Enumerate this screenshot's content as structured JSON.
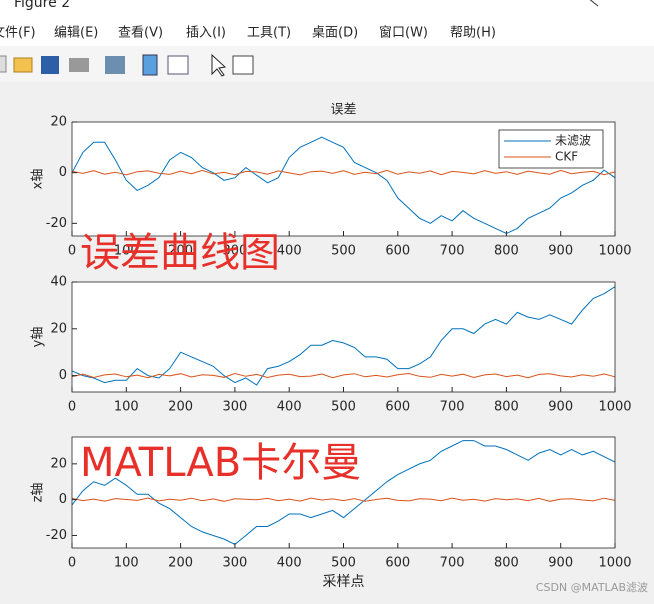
{
  "window": {
    "title": "Figure 2",
    "menu": [
      "文件(F)",
      "编辑(E)",
      "查看(V)",
      "插入(I)",
      "工具(T)",
      "桌面(D)",
      "窗口(W)",
      "帮助(H)"
    ],
    "overlays": [
      "误差曲线图",
      "MATLAB卡尔曼"
    ],
    "watermark": "CSDN @MATLAB滤波"
  },
  "chart_data": [
    {
      "type": "line",
      "title": "误差",
      "ylabel": "x轴",
      "legend": "northeast",
      "x": [
        0,
        20,
        40,
        60,
        80,
        100,
        120,
        140,
        160,
        180,
        200,
        220,
        240,
        260,
        280,
        300,
        320,
        340,
        360,
        380,
        400,
        420,
        440,
        460,
        480,
        500,
        520,
        540,
        560,
        580,
        600,
        620,
        640,
        660,
        680,
        700,
        720,
        740,
        760,
        780,
        800,
        820,
        840,
        860,
        880,
        900,
        920,
        940,
        960,
        980,
        1000
      ],
      "xlim": [
        0,
        1000
      ],
      "xticks": [
        0,
        100,
        200,
        300,
        400,
        500,
        600,
        700,
        800,
        900,
        1000
      ],
      "ylim": [
        -25,
        20
      ],
      "yticks": [
        -20,
        0,
        20
      ],
      "series": [
        {
          "name": "未滤波",
          "color": "#0072BD",
          "values": [
            0,
            8,
            12,
            12,
            5,
            -3,
            -7,
            -5,
            -2,
            5,
            8,
            6,
            2,
            0,
            -3,
            -2,
            2,
            -1,
            -4,
            -2,
            6,
            10,
            12,
            14,
            12,
            10,
            4,
            2,
            0,
            -3,
            -10,
            -14,
            -18,
            -20,
            -17,
            -19,
            -15,
            -18,
            -20,
            -22,
            -24,
            -22,
            -18,
            -16,
            -14,
            -10,
            -8,
            -5,
            -3,
            1,
            -2
          ]
        },
        {
          "name": "CKF",
          "color": "#D95319",
          "values": [
            0.5,
            -0.3,
            0.8,
            -0.6,
            0.2,
            -0.9,
            0.4,
            0.7,
            -0.2,
            -0.7,
            0.6,
            -0.4,
            0.9,
            -0.5,
            0.1,
            -0.8,
            0.5,
            0.3,
            -0.6,
            0.7,
            -0.1,
            -0.9,
            0.4,
            0.6,
            -0.3,
            0.8,
            -0.7,
            0.2,
            -0.4,
            0.9,
            -0.6,
            0.3,
            -0.2,
            0.7,
            -0.8,
            0.5,
            0.1,
            -0.5,
            0.8,
            -0.3,
            0.4,
            -0.7,
            0.6,
            -0.1,
            -0.6,
            0.9,
            -0.4,
            0.2,
            0.5,
            -0.8,
            0.3
          ]
        }
      ]
    },
    {
      "type": "line",
      "ylabel": "y轴",
      "x": [
        0,
        20,
        40,
        60,
        80,
        100,
        120,
        140,
        160,
        180,
        200,
        220,
        240,
        260,
        280,
        300,
        320,
        340,
        360,
        380,
        400,
        420,
        440,
        460,
        480,
        500,
        520,
        540,
        560,
        580,
        600,
        620,
        640,
        660,
        680,
        700,
        720,
        740,
        760,
        780,
        800,
        820,
        840,
        860,
        880,
        900,
        920,
        940,
        960,
        980,
        1000
      ],
      "xlim": [
        0,
        1000
      ],
      "xticks": [
        0,
        100,
        200,
        300,
        400,
        500,
        600,
        700,
        800,
        900,
        1000
      ],
      "ylim": [
        -7,
        40
      ],
      "yticks": [
        0,
        20,
        40
      ],
      "series": [
        {
          "color": "#0072BD",
          "values": [
            2,
            0,
            -1,
            -3,
            -2,
            -2,
            3,
            0,
            -1,
            3,
            10,
            8,
            6,
            4,
            0,
            -3,
            -1,
            -4,
            3,
            4,
            6,
            9,
            13,
            13,
            15,
            14,
            12,
            8,
            8,
            7,
            3,
            3,
            5,
            8,
            15,
            20,
            20,
            18,
            22,
            24,
            22,
            27,
            25,
            24,
            26,
            24,
            22,
            28,
            33,
            35,
            38
          ]
        },
        {
          "color": "#D95319",
          "values": [
            -0.4,
            0.6,
            -0.8,
            0.3,
            0.7,
            -0.5,
            0.2,
            -0.9,
            0.5,
            -0.1,
            0.8,
            -0.6,
            0.4,
            0.1,
            -0.7,
            0.9,
            -0.3,
            0.5,
            -0.8,
            0.2,
            0.6,
            -0.4,
            -0.2,
            0.7,
            -0.9,
            0.3,
            0.8,
            -0.5,
            0.1,
            -0.6,
            0.4,
            0.9,
            -0.3,
            -0.7,
            0.5,
            -0.2,
            0.6,
            -0.8,
            0.3,
            0.7,
            -0.4,
            0.2,
            -0.9,
            0.5,
            0.8,
            -0.1,
            -0.6,
            0.4,
            -0.3,
            0.7,
            -0.5
          ]
        }
      ]
    },
    {
      "type": "line",
      "ylabel": "z轴",
      "xlabel": "采样点",
      "x": [
        0,
        20,
        40,
        60,
        80,
        100,
        120,
        140,
        160,
        180,
        200,
        220,
        240,
        260,
        280,
        300,
        320,
        340,
        360,
        380,
        400,
        420,
        440,
        460,
        480,
        500,
        520,
        540,
        560,
        580,
        600,
        620,
        640,
        660,
        680,
        700,
        720,
        740,
        760,
        780,
        800,
        820,
        840,
        860,
        880,
        900,
        920,
        940,
        960,
        980,
        1000
      ],
      "xlim": [
        0,
        1000
      ],
      "xticks": [
        0,
        100,
        200,
        300,
        400,
        500,
        600,
        700,
        800,
        900,
        1000
      ],
      "ylim": [
        -27,
        35
      ],
      "yticks": [
        -20,
        0,
        20
      ],
      "series": [
        {
          "color": "#0072BD",
          "values": [
            -3,
            5,
            10,
            8,
            12,
            8,
            3,
            3,
            -2,
            -5,
            -10,
            -15,
            -18,
            -20,
            -22,
            -25,
            -20,
            -15,
            -15,
            -12,
            -8,
            -8,
            -10,
            -8,
            -6,
            -10,
            -5,
            0,
            5,
            10,
            14,
            17,
            20,
            22,
            27,
            30,
            33,
            33,
            30,
            30,
            28,
            25,
            22,
            26,
            28,
            25,
            28,
            25,
            27,
            24,
            21
          ]
        },
        {
          "color": "#D95319",
          "values": [
            0.7,
            -0.5,
            0.3,
            -0.8,
            0.6,
            0.1,
            -0.4,
            0.9,
            -0.7,
            0.2,
            -0.3,
            0.8,
            -0.6,
            0.4,
            -0.9,
            0.5,
            0.2,
            -0.1,
            0.7,
            -0.6,
            0.3,
            -0.8,
            0.9,
            -0.2,
            0.4,
            -0.5,
            0.6,
            -0.9,
            0.1,
            0.8,
            -0.4,
            -0.7,
            0.5,
            0.3,
            -0.6,
            0.9,
            -0.3,
            0.2,
            -0.8,
            0.6,
            -0.1,
            0.4,
            -0.5,
            0.7,
            -0.9,
            0.3,
            0.5,
            -0.2,
            -0.7,
            0.8,
            -0.4
          ]
        }
      ]
    }
  ]
}
